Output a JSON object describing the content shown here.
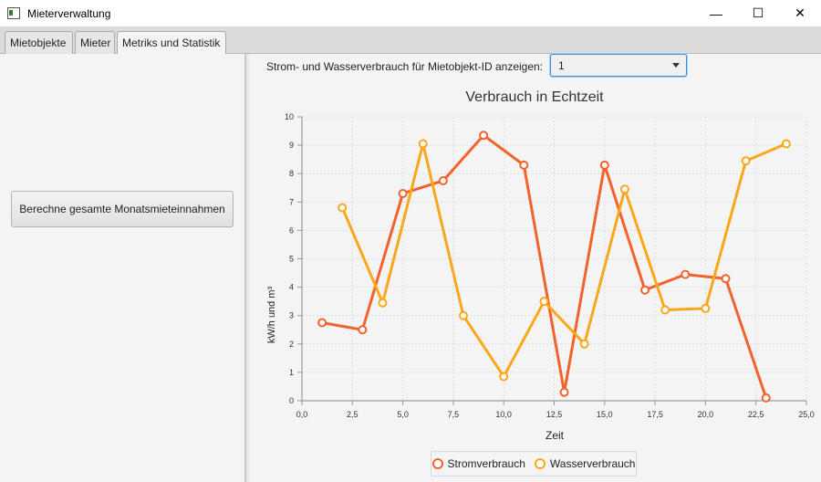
{
  "window": {
    "title": "Mieterverwaltung",
    "minimize": "—",
    "maximize": "☐",
    "close": "✕"
  },
  "tabs": [
    {
      "label": "Mietobjekte"
    },
    {
      "label": "Mieter"
    },
    {
      "label": "Metriks und Statistik",
      "active": true
    }
  ],
  "left": {
    "calc_button": "Berechne gesamte Monatsmieteinnahmen"
  },
  "filter": {
    "label": "Strom- und Wasserverbrauch für Mietobjekt-ID anzeigen:",
    "selected": "1"
  },
  "chart_data": {
    "type": "line",
    "title": "Verbrauch in Echtzeit",
    "xlabel": "Zeit",
    "ylabel": "kW/h und m³",
    "xlim": [
      0,
      25
    ],
    "ylim": [
      0,
      10
    ],
    "xticks": [
      "0,0",
      "2,5",
      "5,0",
      "7,5",
      "10,0",
      "12,5",
      "15,0",
      "17,5",
      "20,0",
      "22,5",
      "25,0"
    ],
    "yticks": [
      "0",
      "1",
      "2",
      "3",
      "4",
      "5",
      "6",
      "7",
      "8",
      "9",
      "10"
    ],
    "grid": true,
    "legend": "bottom",
    "series": [
      {
        "name": "Stromverbrauch",
        "color": "#f3622d",
        "x": [
          1,
          3,
          5,
          7,
          9,
          11,
          13,
          15,
          17,
          19,
          21,
          23
        ],
        "y": [
          2.75,
          2.5,
          7.3,
          7.75,
          9.35,
          8.3,
          0.3,
          8.3,
          3.9,
          4.45,
          4.3,
          0.1
        ]
      },
      {
        "name": "Wasserverbrauch",
        "color": "#fba71b",
        "x": [
          2,
          4,
          6,
          8,
          10,
          12,
          14,
          16,
          18,
          20,
          22,
          24
        ],
        "y": [
          6.8,
          3.45,
          9.05,
          3.0,
          0.85,
          3.5,
          2.0,
          7.45,
          3.2,
          3.25,
          8.45,
          9.05
        ]
      }
    ]
  }
}
